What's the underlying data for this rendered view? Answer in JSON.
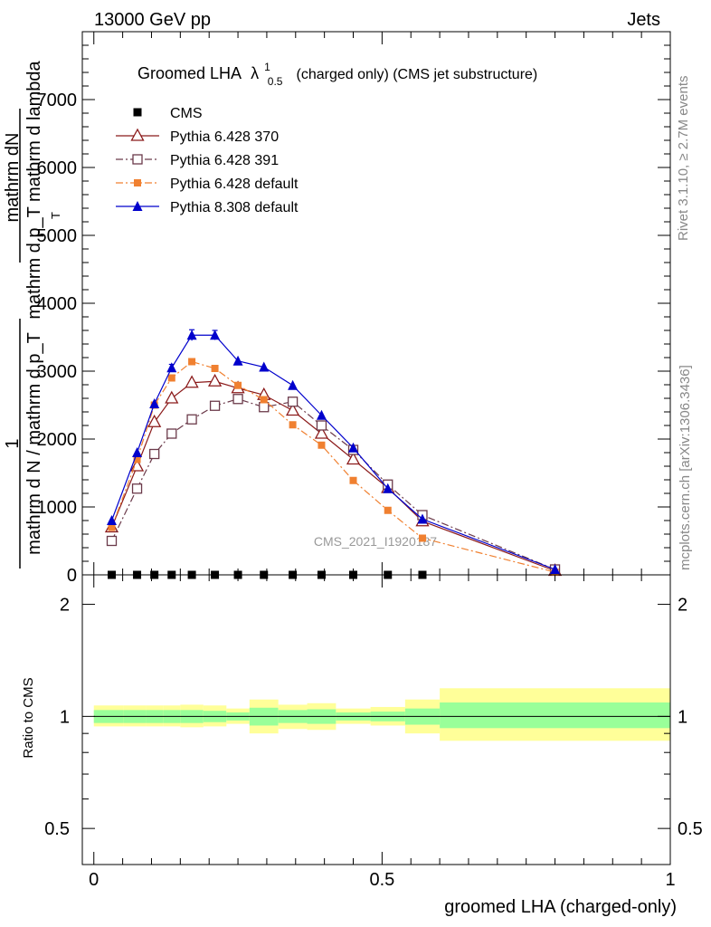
{
  "header": {
    "energy_label": "13000 GeV pp",
    "category_label": "Jets"
  },
  "side_labels": {
    "rivet": "Rivet 3.1.10, ≥ 2.7M events",
    "mcplots": "mcplots.cern.ch [arXiv:1306.3436]"
  },
  "watermark": "CMS_2021_I1920187",
  "chart_data": [
    {
      "type": "line",
      "title_main": "Groomed LHA",
      "title_symbol": "λ",
      "title_sup": "1",
      "title_sub": "0.5",
      "title_rest": "(charged only) (CMS jet substructure)",
      "ylabel_line1": "mathrm dN",
      "ylabel_line2": "mathrm d p_T mathrm d lambda",
      "ylabel_line1_sub": "T",
      "ylabel_frac_top": "1",
      "ylabel_frac_bottom": "mathrm d N / mathrm d p_T",
      "xlim": [
        -0.02,
        1.0
      ],
      "ylim": [
        0,
        8000
      ],
      "yticks": [
        {
          "v": 0,
          "label": "0"
        },
        {
          "v": 1000,
          "label": "1000"
        },
        {
          "v": 2000,
          "label": "2000"
        },
        {
          "v": 3000,
          "label": "3000"
        },
        {
          "v": 4000,
          "label": "4000"
        },
        {
          "v": 5000,
          "label": "5000"
        },
        {
          "v": 6000,
          "label": "6000"
        },
        {
          "v": 7000,
          "label": "7000"
        }
      ],
      "legend_position": "top-left",
      "grid": false,
      "x": [
        0.031,
        0.075,
        0.105,
        0.135,
        0.17,
        0.21,
        0.25,
        0.295,
        0.345,
        0.395,
        0.45,
        0.51,
        0.57,
        0.8
      ],
      "series": [
        {
          "name": "CMS",
          "color": "#000000",
          "marker": "square-filled",
          "line": "none",
          "y": [
            0,
            0,
            0,
            0,
            0,
            0,
            0,
            0,
            0,
            0,
            0,
            0,
            0,
            null
          ]
        },
        {
          "name": "Pythia 6.428 370",
          "color": "#8b1a1a",
          "marker": "triangle-open",
          "line": "solid",
          "y": [
            700,
            1600,
            2250,
            2600,
            2830,
            2850,
            2750,
            2650,
            2420,
            2080,
            1700,
            1280,
            790,
            60
          ]
        },
        {
          "name": "Pythia 6.428 391",
          "color": "#6b3a4a",
          "marker": "square-open",
          "line": "dashdot",
          "y": [
            500,
            1270,
            1780,
            2080,
            2290,
            2490,
            2590,
            2470,
            2550,
            2200,
            1840,
            1330,
            880,
            80
          ]
        },
        {
          "name": "Pythia 6.428 default",
          "color": "#f08030",
          "marker": "square-filled-small",
          "line": "dashdot",
          "y": [
            700,
            1700,
            2500,
            2900,
            3140,
            3040,
            2790,
            2580,
            2210,
            1910,
            1390,
            950,
            540,
            40
          ]
        },
        {
          "name": "Pythia 8.308 default",
          "color": "#0000cc",
          "marker": "triangle-filled",
          "line": "solid",
          "y": [
            800,
            1800,
            2520,
            3050,
            3530,
            3530,
            3150,
            3060,
            2790,
            2350,
            1870,
            1270,
            820,
            80
          ],
          "err": [
            0,
            0,
            0,
            50,
            80,
            70,
            0,
            0,
            0,
            0,
            0,
            0,
            0,
            0
          ]
        }
      ]
    },
    {
      "type": "area",
      "ylabel": "Ratio to CMS",
      "xlabel": "groomed LHA (charged-only)",
      "xlim": [
        -0.02,
        1.0
      ],
      "ylim": [
        0.4,
        2.4
      ],
      "log_y": true,
      "xticks": [
        {
          "v": 0,
          "label": "0"
        },
        {
          "v": 0.5,
          "label": "0.5"
        },
        {
          "v": 1,
          "label": "1"
        }
      ],
      "yticks": [
        {
          "v": 0.5,
          "label": "0.5"
        },
        {
          "v": 1,
          "label": "1"
        },
        {
          "v": 2,
          "label": "2"
        }
      ],
      "band_colors": {
        "inner": "#99ff99",
        "outer": "#ffff99"
      },
      "bins": [
        {
          "x0": 0.0,
          "x1": 0.052,
          "inner": [
            0.96,
            1.04
          ],
          "outer": [
            0.94,
            1.07
          ]
        },
        {
          "x0": 0.052,
          "x1": 0.09,
          "inner": [
            0.96,
            1.04
          ],
          "outer": [
            0.94,
            1.07
          ]
        },
        {
          "x0": 0.09,
          "x1": 0.12,
          "inner": [
            0.96,
            1.04
          ],
          "outer": [
            0.94,
            1.07
          ]
        },
        {
          "x0": 0.12,
          "x1": 0.15,
          "inner": [
            0.96,
            1.04
          ],
          "outer": [
            0.94,
            1.07
          ]
        },
        {
          "x0": 0.15,
          "x1": 0.19,
          "inner": [
            0.96,
            1.04
          ],
          "outer": [
            0.935,
            1.075
          ]
        },
        {
          "x0": 0.19,
          "x1": 0.23,
          "inner": [
            0.965,
            1.035
          ],
          "outer": [
            0.94,
            1.07
          ]
        },
        {
          "x0": 0.23,
          "x1": 0.27,
          "inner": [
            0.975,
            1.025
          ],
          "outer": [
            0.955,
            1.05
          ]
        },
        {
          "x0": 0.27,
          "x1": 0.32,
          "inner": [
            0.945,
            1.055
          ],
          "outer": [
            0.9,
            1.11
          ]
        },
        {
          "x0": 0.32,
          "x1": 0.37,
          "inner": [
            0.96,
            1.04
          ],
          "outer": [
            0.925,
            1.075
          ]
        },
        {
          "x0": 0.37,
          "x1": 0.42,
          "inner": [
            0.955,
            1.045
          ],
          "outer": [
            0.92,
            1.085
          ]
        },
        {
          "x0": 0.42,
          "x1": 0.48,
          "inner": [
            0.975,
            1.025
          ],
          "outer": [
            0.955,
            1.05
          ]
        },
        {
          "x0": 0.48,
          "x1": 0.54,
          "inner": [
            0.97,
            1.03
          ],
          "outer": [
            0.945,
            1.06
          ]
        },
        {
          "x0": 0.54,
          "x1": 0.6,
          "inner": [
            0.95,
            1.05
          ],
          "outer": [
            0.9,
            1.11
          ]
        },
        {
          "x0": 0.6,
          "x1": 1.0,
          "inner": [
            0.93,
            1.09
          ],
          "outer": [
            0.86,
            1.19
          ]
        }
      ]
    }
  ]
}
